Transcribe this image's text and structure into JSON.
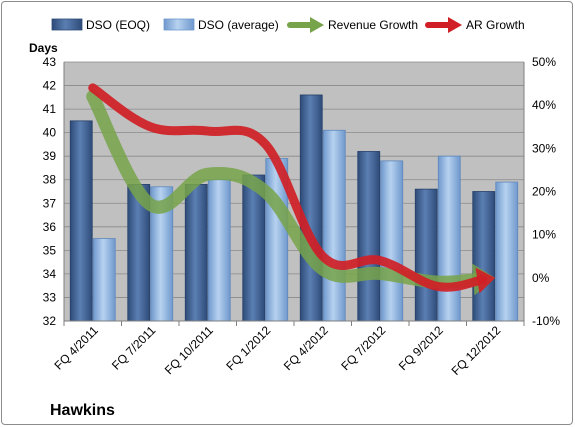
{
  "company": "Hawkins",
  "colors": {
    "plot_bg": "#c0c0c0",
    "bar_eoq": "#3f5f8f",
    "bar_avg": "#8db4e2",
    "revenue_growth": "#77a34a",
    "ar_growth": "#d01f26"
  },
  "chart_data": {
    "type": "bar",
    "categories": [
      "FQ 4/2011",
      "FQ 7/2011",
      "FQ 10/2011",
      "FQ 1/2012",
      "FQ 4/2012",
      "FQ 7/2012",
      "FQ 9/2012",
      "FQ 12/2012"
    ],
    "ylabel": "Days",
    "ylim": [
      32,
      43
    ],
    "yticks": [
      "32",
      "33",
      "34",
      "35",
      "36",
      "37",
      "38",
      "39",
      "40",
      "41",
      "42",
      "43"
    ],
    "y2lim": [
      -10,
      50
    ],
    "y2ticks": [
      "-10%",
      "0%",
      "10%",
      "20%",
      "30%",
      "40%",
      "50%"
    ],
    "grid": true,
    "legend_position": "top",
    "series": [
      {
        "name": "DSO (EOQ)",
        "type": "bar",
        "axis": "left",
        "values": [
          40.5,
          37.8,
          37.8,
          38.2,
          41.6,
          39.2,
          37.6,
          37.5
        ]
      },
      {
        "name": "DSO (average)",
        "type": "bar",
        "axis": "left",
        "values": [
          35.5,
          37.7,
          38.0,
          38.9,
          40.1,
          38.8,
          39.0,
          37.9
        ]
      },
      {
        "name": "Revenue Growth",
        "type": "line",
        "axis": "right",
        "unit": "%",
        "values": [
          42,
          17,
          24,
          20,
          2,
          1,
          -1,
          0
        ]
      },
      {
        "name": "AR Growth",
        "type": "line",
        "axis": "right",
        "unit": "%",
        "values": [
          44,
          35,
          34,
          31,
          5,
          4,
          -2,
          0
        ]
      }
    ]
  }
}
